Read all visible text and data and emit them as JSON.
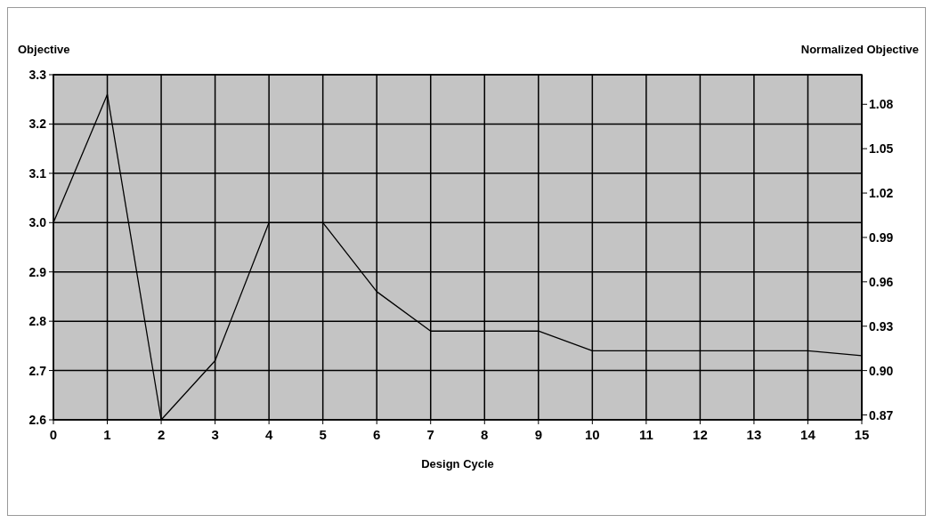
{
  "chart_data": {
    "type": "line",
    "xlabel": "Design Cycle",
    "ylabel": "Objective",
    "y2label": "Normalized Objective",
    "x": [
      0,
      1,
      2,
      3,
      4,
      5,
      6,
      7,
      8,
      9,
      10,
      11,
      12,
      13,
      14,
      15
    ],
    "series": [
      {
        "color": "#000000",
        "values": [
          3.0,
          3.26,
          2.6,
          2.72,
          3.0,
          3.0,
          2.86,
          2.78,
          2.78,
          2.78,
          2.74,
          2.74,
          2.74,
          2.74,
          2.74,
          2.73
        ]
      }
    ],
    "xlim": [
      0,
      15
    ],
    "xticks": [
      0,
      1,
      2,
      3,
      4,
      5,
      6,
      7,
      8,
      9,
      10,
      11,
      12,
      13,
      14,
      15
    ],
    "ylim": [
      2.6,
      3.3
    ],
    "yticks": [
      2.6,
      2.7,
      2.8,
      2.9,
      {
        "value": 3,
        "label": "3.0"
      },
      3.1,
      3.2,
      3.3
    ],
    "y2lim": [
      0.8667,
      1.1
    ],
    "y2ticks": [
      0.87,
      {
        "value": 0.9,
        "label": "0.90"
      },
      0.93,
      0.96,
      0.99,
      1.02,
      1.05,
      1.08
    ],
    "grid": true,
    "marker": "none",
    "line_style": "solid"
  }
}
